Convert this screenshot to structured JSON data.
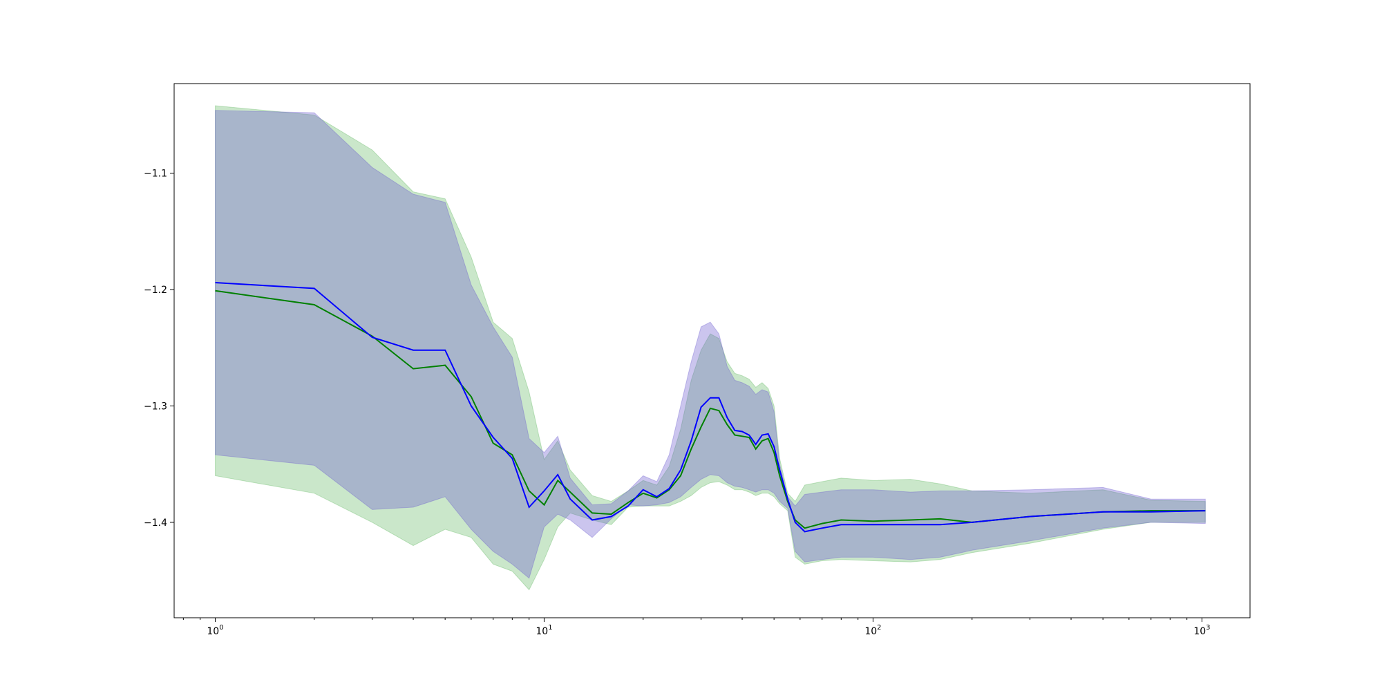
{
  "chart_data": {
    "type": "area",
    "title": "",
    "xlabel": "",
    "ylabel": "",
    "x_scale": "log",
    "xlim": [
      0.75,
      1400
    ],
    "ylim": [
      -1.482,
      -1.023
    ],
    "grid": false,
    "legend": "none",
    "x_ticks": [
      {
        "value": 1,
        "base": "10",
        "exp": "0"
      },
      {
        "value": 10,
        "base": "10",
        "exp": "1"
      },
      {
        "value": 100,
        "base": "10",
        "exp": "2"
      },
      {
        "value": 1000,
        "base": "10",
        "exp": "3"
      }
    ],
    "y_ticks": [
      {
        "value": -1.1,
        "label": "−1.1"
      },
      {
        "value": -1.2,
        "label": "−1.2"
      },
      {
        "value": -1.3,
        "label": "−1.3"
      },
      {
        "value": -1.4,
        "label": "−1.4"
      }
    ],
    "series": [
      {
        "color": "#008000",
        "band_color": "#2ca02c",
        "band_opacity": 0.25,
        "x": [
          1,
          2,
          3,
          4,
          5,
          6,
          7,
          8,
          9,
          10,
          11,
          12,
          14,
          16,
          18,
          20,
          22,
          24,
          26,
          28,
          30,
          32,
          34,
          36,
          38,
          40,
          42,
          44,
          46,
          48,
          50,
          52,
          55,
          58,
          62,
          70,
          80,
          100,
          130,
          160,
          200,
          300,
          500,
          700,
          1024
        ],
        "mean": [
          -1.201,
          -1.213,
          -1.24,
          -1.268,
          -1.265,
          -1.292,
          -1.332,
          -1.342,
          -1.373,
          -1.385,
          -1.364,
          -1.374,
          -1.392,
          -1.393,
          -1.383,
          -1.375,
          -1.379,
          -1.372,
          -1.36,
          -1.337,
          -1.318,
          -1.302,
          -1.304,
          -1.316,
          -1.325,
          -1.326,
          -1.327,
          -1.337,
          -1.33,
          -1.328,
          -1.34,
          -1.36,
          -1.382,
          -1.398,
          -1.405,
          -1.401,
          -1.398,
          -1.399,
          -1.398,
          -1.397,
          -1.4,
          -1.395,
          -1.391,
          -1.39,
          -1.39
        ],
        "upper": [
          -1.042,
          -1.05,
          -1.08,
          -1.116,
          -1.122,
          -1.172,
          -1.228,
          -1.242,
          -1.288,
          -1.346,
          -1.33,
          -1.355,
          -1.377,
          -1.382,
          -1.373,
          -1.364,
          -1.368,
          -1.352,
          -1.32,
          -1.278,
          -1.252,
          -1.238,
          -1.242,
          -1.262,
          -1.272,
          -1.274,
          -1.277,
          -1.284,
          -1.28,
          -1.285,
          -1.3,
          -1.345,
          -1.375,
          -1.382,
          -1.368,
          -1.365,
          -1.362,
          -1.364,
          -1.363,
          -1.367,
          -1.373,
          -1.375,
          -1.372,
          -1.381,
          -1.382
        ],
        "lower": [
          -1.36,
          -1.375,
          -1.4,
          -1.42,
          -1.406,
          -1.413,
          -1.436,
          -1.442,
          -1.458,
          -1.432,
          -1.404,
          -1.392,
          -1.398,
          -1.402,
          -1.387,
          -1.386,
          -1.386,
          -1.386,
          -1.382,
          -1.377,
          -1.37,
          -1.366,
          -1.365,
          -1.368,
          -1.372,
          -1.372,
          -1.374,
          -1.377,
          -1.375,
          -1.375,
          -1.378,
          -1.384,
          -1.39,
          -1.43,
          -1.436,
          -1.433,
          -1.432,
          -1.433,
          -1.434,
          -1.432,
          -1.426,
          -1.418,
          -1.406,
          -1.4,
          -1.4
        ]
      },
      {
        "color": "#0000ff",
        "band_color": "#6a5acd",
        "band_opacity": 0.35,
        "x": [
          1,
          2,
          3,
          4,
          5,
          6,
          7,
          8,
          9,
          10,
          11,
          12,
          14,
          16,
          18,
          20,
          22,
          24,
          26,
          28,
          30,
          32,
          34,
          36,
          38,
          40,
          42,
          44,
          46,
          48,
          50,
          52,
          55,
          58,
          62,
          70,
          80,
          100,
          130,
          160,
          200,
          300,
          500,
          700,
          1024
        ],
        "mean": [
          -1.194,
          -1.199,
          -1.241,
          -1.252,
          -1.252,
          -1.3,
          -1.327,
          -1.345,
          -1.387,
          -1.373,
          -1.359,
          -1.38,
          -1.398,
          -1.395,
          -1.386,
          -1.372,
          -1.378,
          -1.371,
          -1.355,
          -1.33,
          -1.301,
          -1.293,
          -1.293,
          -1.31,
          -1.321,
          -1.322,
          -1.325,
          -1.333,
          -1.325,
          -1.324,
          -1.335,
          -1.355,
          -1.38,
          -1.4,
          -1.408,
          -1.405,
          -1.402,
          -1.402,
          -1.402,
          -1.402,
          -1.4,
          -1.395,
          -1.391,
          -1.391,
          -1.39
        ],
        "upper": [
          -1.046,
          -1.048,
          -1.095,
          -1.118,
          -1.125,
          -1.196,
          -1.232,
          -1.258,
          -1.328,
          -1.34,
          -1.326,
          -1.362,
          -1.385,
          -1.384,
          -1.373,
          -1.36,
          -1.365,
          -1.342,
          -1.3,
          -1.262,
          -1.232,
          -1.228,
          -1.238,
          -1.266,
          -1.278,
          -1.28,
          -1.283,
          -1.29,
          -1.286,
          -1.288,
          -1.305,
          -1.35,
          -1.378,
          -1.386,
          -1.376,
          -1.374,
          -1.372,
          -1.372,
          -1.374,
          -1.373,
          -1.373,
          -1.372,
          -1.37,
          -1.38,
          -1.38
        ],
        "lower": [
          -1.342,
          -1.351,
          -1.389,
          -1.387,
          -1.378,
          -1.406,
          -1.425,
          -1.436,
          -1.448,
          -1.404,
          -1.393,
          -1.398,
          -1.413,
          -1.397,
          -1.385,
          -1.386,
          -1.385,
          -1.383,
          -1.378,
          -1.37,
          -1.363,
          -1.359,
          -1.36,
          -1.366,
          -1.369,
          -1.37,
          -1.372,
          -1.374,
          -1.372,
          -1.372,
          -1.375,
          -1.382,
          -1.388,
          -1.425,
          -1.434,
          -1.432,
          -1.43,
          -1.43,
          -1.432,
          -1.43,
          -1.424,
          -1.416,
          -1.405,
          -1.4,
          -1.401
        ]
      }
    ]
  }
}
